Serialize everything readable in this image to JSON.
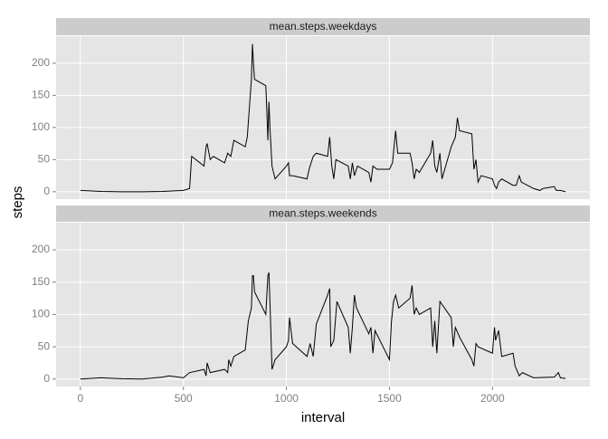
{
  "chart_data": [
    {
      "type": "line",
      "title": "mean.steps.weekdays",
      "y_label": "steps",
      "color": "#000000",
      "x": [
        0,
        100,
        200,
        300,
        400,
        500,
        530,
        540,
        600,
        610,
        615,
        630,
        645,
        700,
        715,
        730,
        745,
        800,
        810,
        820,
        830,
        835,
        840,
        845,
        900,
        905,
        910,
        915,
        920,
        930,
        945,
        1000,
        1010,
        1015,
        1030,
        1100,
        1110,
        1130,
        1145,
        1200,
        1210,
        1220,
        1230,
        1240,
        1300,
        1310,
        1320,
        1330,
        1345,
        1400,
        1410,
        1420,
        1440,
        1500,
        1515,
        1530,
        1540,
        1600,
        1610,
        1620,
        1630,
        1645,
        1700,
        1710,
        1720,
        1730,
        1745,
        1755,
        1800,
        1820,
        1830,
        1840,
        1900,
        1910,
        1920,
        1930,
        1945,
        2000,
        2010,
        2020,
        2030,
        2045,
        2100,
        2115,
        2130,
        2140,
        2200,
        2230,
        2245,
        2300,
        2310,
        2330,
        2355
      ],
      "values": [
        2,
        0.5,
        0,
        0,
        0.5,
        2,
        5,
        55,
        40,
        70,
        75,
        50,
        55,
        45,
        60,
        55,
        80,
        70,
        85,
        130,
        175,
        230,
        200,
        175,
        165,
        125,
        80,
        140,
        100,
        40,
        20,
        40,
        45,
        25,
        25,
        20,
        35,
        55,
        60,
        55,
        85,
        40,
        20,
        50,
        40,
        20,
        45,
        25,
        40,
        30,
        15,
        40,
        35,
        35,
        45,
        95,
        60,
        60,
        45,
        20,
        35,
        30,
        60,
        80,
        40,
        30,
        60,
        20,
        70,
        85,
        115,
        95,
        90,
        35,
        50,
        15,
        25,
        20,
        10,
        5,
        15,
        20,
        10,
        10,
        25,
        15,
        5,
        2,
        5,
        8,
        2,
        2,
        0
      ],
      "xlim": [
        -118,
        2473
      ],
      "ylim": [
        -11.5,
        242
      ],
      "xticks": [
        0,
        500,
        1000,
        1500,
        2000
      ],
      "yticks": [
        0,
        50,
        100,
        150,
        200
      ],
      "grid": true
    },
    {
      "type": "line",
      "title": "mean.steps.weekends",
      "x_label": "interval",
      "color": "#000000",
      "x": [
        0,
        100,
        200,
        300,
        400,
        430,
        500,
        530,
        600,
        610,
        615,
        630,
        700,
        715,
        720,
        730,
        745,
        800,
        815,
        830,
        835,
        840,
        845,
        900,
        910,
        915,
        920,
        930,
        945,
        1000,
        1010,
        1015,
        1030,
        1100,
        1115,
        1130,
        1145,
        1200,
        1210,
        1215,
        1230,
        1245,
        1300,
        1310,
        1320,
        1330,
        1340,
        1400,
        1410,
        1420,
        1430,
        1500,
        1510,
        1520,
        1530,
        1545,
        1600,
        1610,
        1620,
        1630,
        1645,
        1700,
        1710,
        1720,
        1730,
        1745,
        1800,
        1810,
        1820,
        1840,
        1900,
        1910,
        1920,
        1930,
        2000,
        2010,
        2015,
        2030,
        2045,
        2100,
        2110,
        2130,
        2145,
        2200,
        2300,
        2320,
        2330,
        2355
      ],
      "values": [
        0,
        2,
        0.5,
        0,
        3,
        5,
        2,
        10,
        15,
        5,
        25,
        10,
        15,
        10,
        30,
        20,
        35,
        45,
        90,
        110,
        160,
        160,
        135,
        100,
        160,
        165,
        120,
        15,
        30,
        50,
        60,
        95,
        55,
        35,
        55,
        35,
        85,
        130,
        140,
        50,
        60,
        120,
        80,
        40,
        80,
        130,
        110,
        70,
        80,
        40,
        75,
        30,
        90,
        120,
        130,
        110,
        125,
        145,
        100,
        110,
        100,
        110,
        50,
        90,
        40,
        120,
        95,
        50,
        80,
        65,
        30,
        20,
        55,
        50,
        40,
        80,
        60,
        75,
        35,
        40,
        20,
        5,
        10,
        2,
        3,
        10,
        2,
        1
      ],
      "xlim": [
        -118,
        2473
      ],
      "ylim": [
        -11.5,
        242
      ],
      "xticks": [
        0,
        500,
        1000,
        1500,
        2000
      ],
      "yticks": [
        0,
        50,
        100,
        150,
        200
      ],
      "grid": true
    }
  ]
}
